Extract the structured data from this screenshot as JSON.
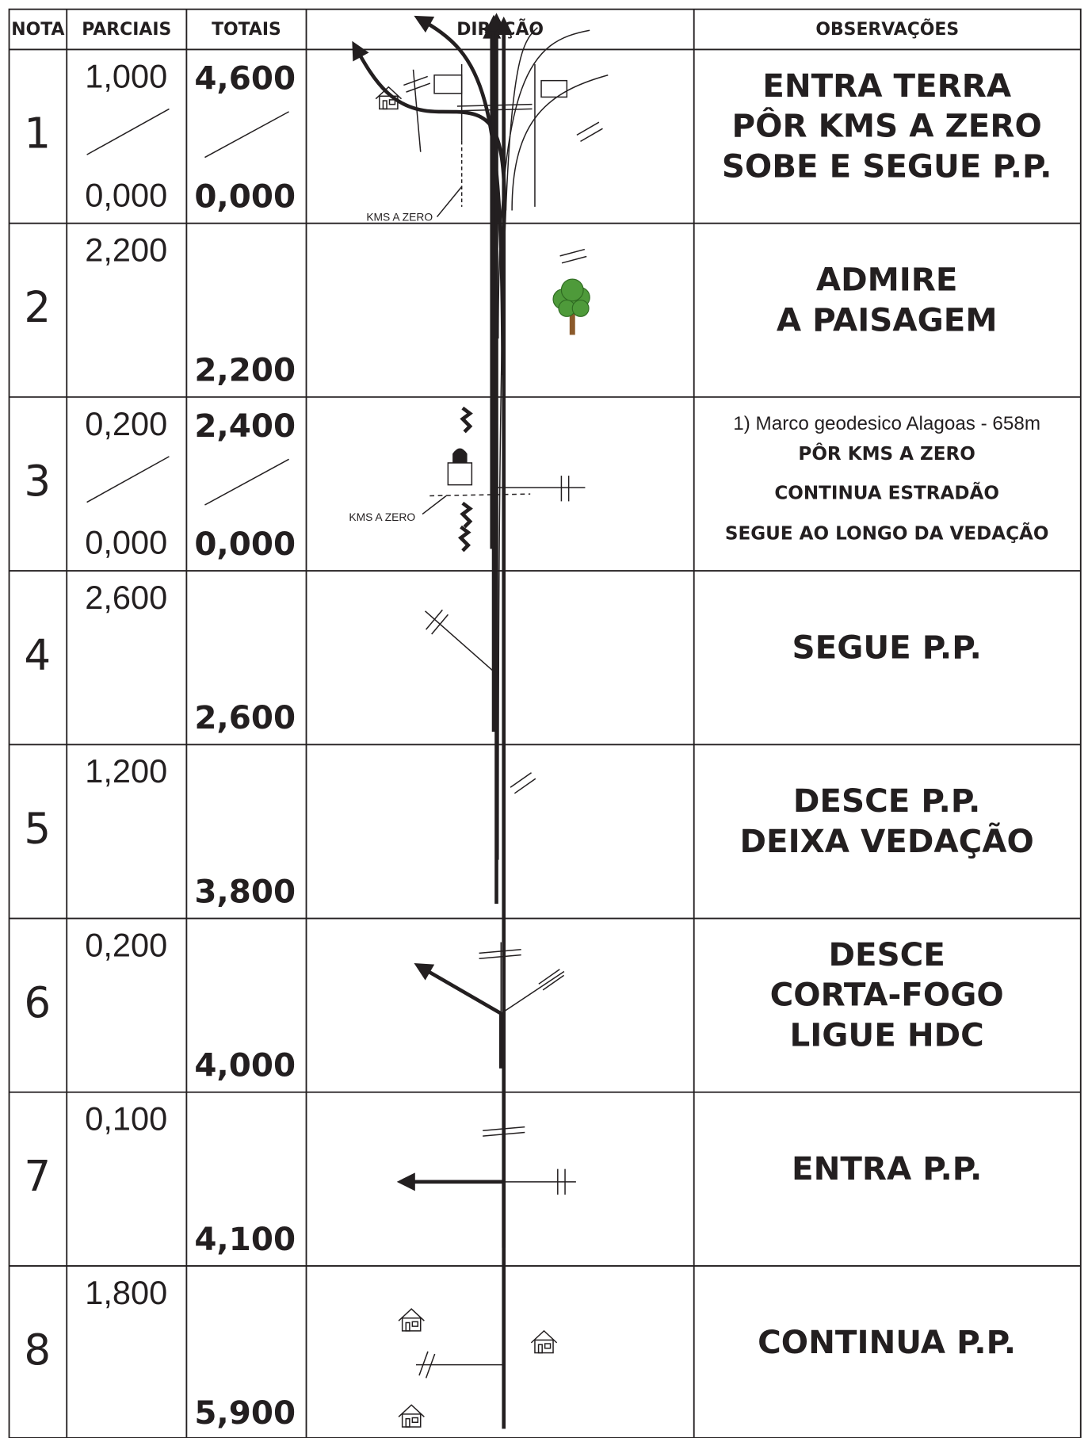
{
  "header": {
    "nota": "NOTA",
    "parciais": "PARCIAIS",
    "totais": "TOTAIS",
    "direcao": "DIREÇÃO",
    "observacoes": "OBSERVAÇÕES"
  },
  "rows": [
    {
      "nota": "1",
      "parciais": [
        "1,000",
        "0,000"
      ],
      "totais": [
        "4,600",
        "0,000"
      ],
      "direcao_label": "KMS A ZERO",
      "observacoes": [
        "ENTRA TERRA",
        "PÔR KMS A ZERO",
        "SOBE E SEGUE P.P."
      ]
    },
    {
      "nota": "2",
      "parciais": [
        "2,200"
      ],
      "totais": [
        "2,200"
      ],
      "observacoes": [
        "ADMIRE",
        "A PAISAGEM"
      ]
    },
    {
      "nota": "3",
      "parciais": [
        "0,200",
        "0,000"
      ],
      "totais": [
        "2,400",
        "0,000"
      ],
      "direcao_label": "KMS A ZERO",
      "observacoes": [
        "1) Marco geodesico Alagoas - 658m",
        "PÔR KMS A ZERO",
        "CONTINUA ESTRADÃO",
        "SEGUE AO LONGO DA VEDAÇÃO"
      ]
    },
    {
      "nota": "4",
      "parciais": [
        "2,600"
      ],
      "totais": [
        "2,600"
      ],
      "observacoes": [
        "SEGUE P.P."
      ]
    },
    {
      "nota": "5",
      "parciais": [
        "1,200"
      ],
      "totais": [
        "3,800"
      ],
      "observacoes": [
        "DESCE P.P.",
        "DEIXA VEDAÇÃO"
      ]
    },
    {
      "nota": "6",
      "parciais": [
        "0,200"
      ],
      "totais": [
        "4,000"
      ],
      "observacoes": [
        "DESCE",
        "CORTA-FOGO",
        "LIGUE HDC"
      ]
    },
    {
      "nota": "7",
      "parciais": [
        "0,100"
      ],
      "totais": [
        "4,100"
      ],
      "observacoes": [
        "ENTRA P.P."
      ]
    },
    {
      "nota": "8",
      "parciais": [
        "1,800"
      ],
      "totais": [
        "5,900"
      ],
      "observacoes": [
        "CONTINUA P.P."
      ]
    }
  ]
}
